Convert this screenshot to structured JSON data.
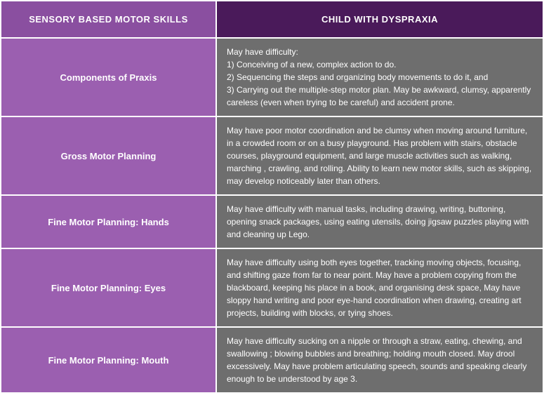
{
  "table": {
    "header_left": "SENSORY BASED MOTOR SKILLS",
    "header_right": "CHILD WITH DYSPRAXIA",
    "header_left_bg": "#8a4fa0",
    "header_right_bg": "#4a1a5a",
    "skill_bg": "#9b5fb0",
    "desc_bg": "#6e6e6e",
    "text_color": "#ffffff",
    "rows": [
      {
        "skill": "Components of Praxis",
        "desc": "May have difficulty:\n1) Conceiving of a new, complex action to do.\n2) Sequencing the steps and organizing body movements to do it, and\n3) Carrying out the multiple-step motor plan. May be awkward, clumsy, apparently careless (even when trying to be careful) and accident prone."
      },
      {
        "skill": "Gross Motor Planning",
        "desc": "May have poor motor coordination and be clumsy when moving around furniture, in a crowded room or on a busy playground. Has problem with stairs, obstacle courses, playground equipment, and large muscle activities such as walking, marching , crawling, and rolling. Ability to learn new motor skills, such as skipping, may develop noticeably later than others."
      },
      {
        "skill": "Fine Motor Planning: Hands",
        "desc": "May have difficulty with manual tasks, including drawing, writing, buttoning, opening snack packages, using eating utensils, doing jigsaw puzzles playing with and cleaning up Lego."
      },
      {
        "skill": "Fine Motor Planning: Eyes",
        "desc": "May have difficulty using both eyes together, tracking moving objects, focusing, and shifting gaze from far to near point. May have a problem copying from the blackboard, keeping his place in a book, and organising desk space, May have sloppy hand writing and poor eye-hand coordination when drawing, creating art projects, building with blocks, or tying shoes."
      },
      {
        "skill": "Fine Motor Planning: Mouth",
        "desc": "May have difficulty sucking on a nipple or through a straw, eating, chewing, and swallowing ; blowing bubbles and breathing; holding mouth closed. May drool excessively. May have problem articulating speech, sounds and speaking clearly enough to be understood by age 3."
      }
    ]
  }
}
